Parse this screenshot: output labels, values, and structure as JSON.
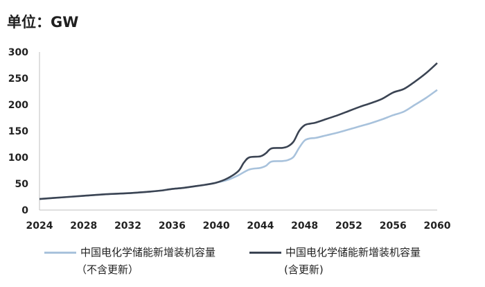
{
  "unit_label": "单位：GW",
  "chart_data": {
    "type": "line",
    "title": "",
    "xlabel": "",
    "ylabel": "",
    "xlim": [
      2024,
      2060
    ],
    "ylim": [
      0,
      300
    ],
    "x_ticks": [
      "2024",
      "2028",
      "2032",
      "2036",
      "2040",
      "2044",
      "2048",
      "2052",
      "2056",
      "2060"
    ],
    "y_ticks": [
      "0",
      "50",
      "100",
      "150",
      "200",
      "250",
      "300"
    ],
    "grid": false,
    "legend_position": "bottom",
    "series": [
      {
        "name_line1": "中国电化学储能新增装机容量",
        "name_line2": "（不含更新）",
        "color": "#a8c2dc",
        "points": [
          [
            2024,
            21
          ],
          [
            2026,
            24
          ],
          [
            2028,
            27
          ],
          [
            2030,
            30
          ],
          [
            2032,
            32
          ],
          [
            2034,
            35
          ],
          [
            2035,
            37
          ],
          [
            2036,
            40
          ],
          [
            2037,
            42
          ],
          [
            2038,
            45
          ],
          [
            2039,
            48
          ],
          [
            2040,
            52
          ],
          [
            2041,
            57
          ],
          [
            2042,
            66
          ],
          [
            2043,
            77
          ],
          [
            2044,
            80
          ],
          [
            2044.5,
            84
          ],
          [
            2045,
            92
          ],
          [
            2046,
            93
          ],
          [
            2046.5,
            95
          ],
          [
            2047,
            101
          ],
          [
            2047.5,
            118
          ],
          [
            2048,
            132
          ],
          [
            2048.5,
            136
          ],
          [
            2049,
            137
          ],
          [
            2050,
            142
          ],
          [
            2051,
            147
          ],
          [
            2052,
            153
          ],
          [
            2053,
            159
          ],
          [
            2054,
            165
          ],
          [
            2055,
            172
          ],
          [
            2056,
            180
          ],
          [
            2057,
            187
          ],
          [
            2058,
            200
          ],
          [
            2059,
            213
          ],
          [
            2060,
            228
          ]
        ]
      },
      {
        "name_line1": "中国电化学储能新增装机容量",
        "name_line2": "(含更新)",
        "color": "#3b4453",
        "points": [
          [
            2024,
            21
          ],
          [
            2026,
            24
          ],
          [
            2028,
            27
          ],
          [
            2030,
            30
          ],
          [
            2032,
            32
          ],
          [
            2034,
            35
          ],
          [
            2035,
            37
          ],
          [
            2036,
            40
          ],
          [
            2037,
            42
          ],
          [
            2038,
            45
          ],
          [
            2039,
            48
          ],
          [
            2040,
            52
          ],
          [
            2041,
            60
          ],
          [
            2042,
            74
          ],
          [
            2042.5,
            90
          ],
          [
            2043,
            100
          ],
          [
            2044,
            102
          ],
          [
            2044.5,
            108
          ],
          [
            2045,
            117
          ],
          [
            2046,
            118
          ],
          [
            2046.5,
            121
          ],
          [
            2047,
            130
          ],
          [
            2047.5,
            150
          ],
          [
            2048,
            161
          ],
          [
            2048.5,
            164
          ],
          [
            2049,
            166
          ],
          [
            2050,
            173
          ],
          [
            2051,
            180
          ],
          [
            2052,
            188
          ],
          [
            2053,
            196
          ],
          [
            2054,
            203
          ],
          [
            2055,
            211
          ],
          [
            2056,
            223
          ],
          [
            2057,
            230
          ],
          [
            2058,
            244
          ],
          [
            2059,
            260
          ],
          [
            2060,
            279
          ]
        ]
      }
    ]
  }
}
